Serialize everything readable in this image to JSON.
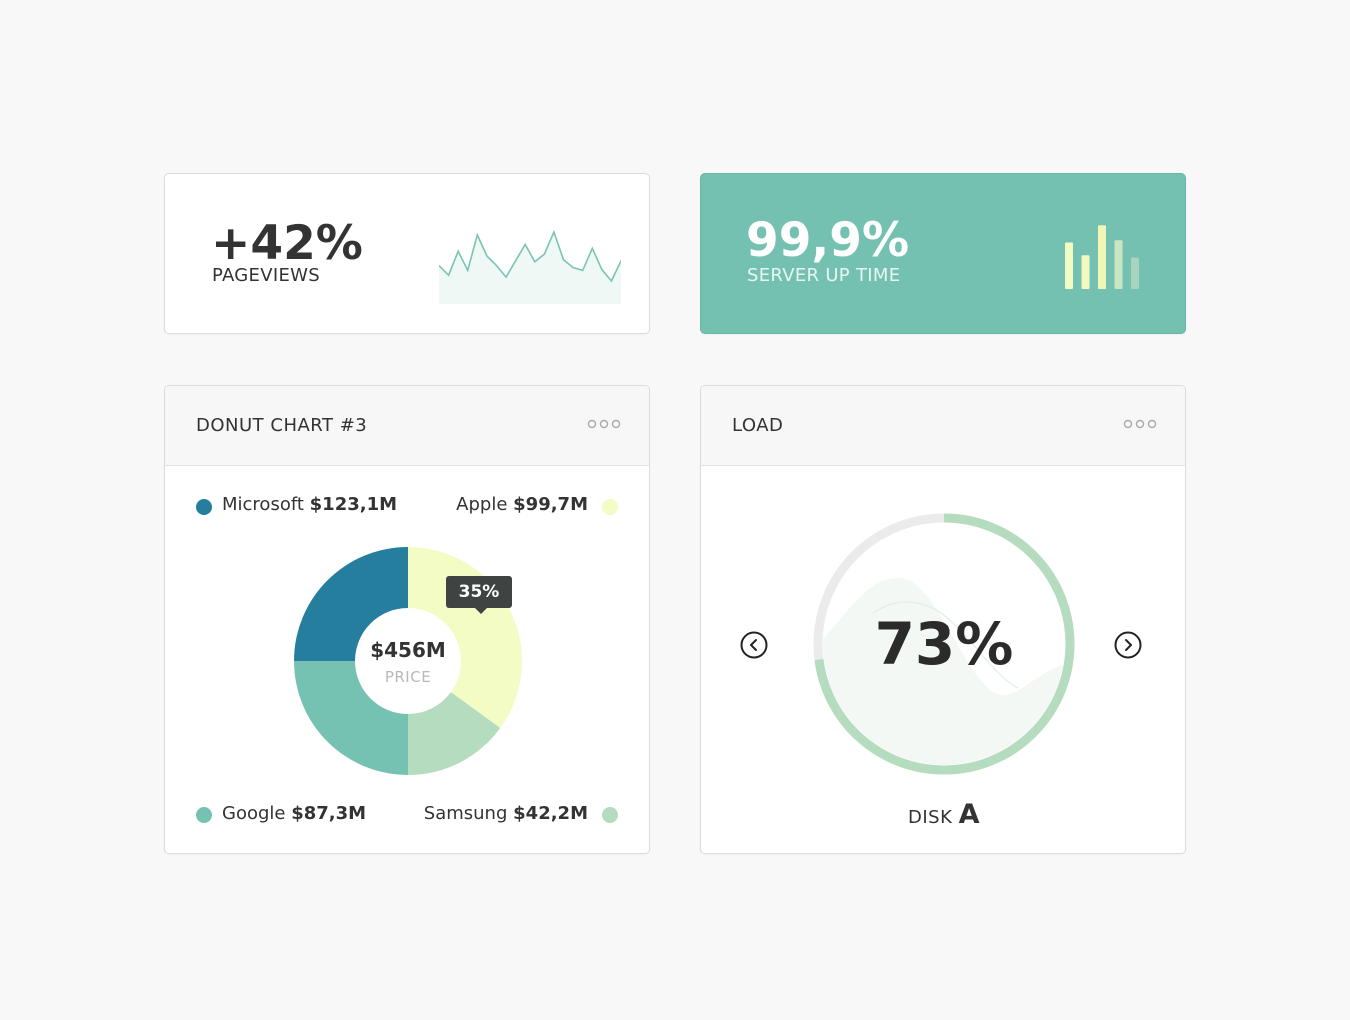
{
  "pageviews": {
    "value": "+42%",
    "label": "PAGEVIEWS",
    "sparkline": [
      40,
      30,
      55,
      35,
      72,
      50,
      40,
      28,
      45,
      62,
      44,
      52,
      75,
      46,
      38,
      35,
      58,
      36,
      24,
      45
    ]
  },
  "uptime": {
    "value": "99,9%",
    "label": "SERVER UP TIME",
    "bars": [
      62,
      45,
      85,
      65,
      42
    ],
    "bar_colors": [
      "#f4fcc6",
      "#f2f9bf",
      "#f0f7b6",
      "#c9e6c3",
      "#a8d3bd"
    ]
  },
  "donut_card": {
    "title": "DONUT CHART #3",
    "more_icon": "more-dots-icon",
    "total": "$456M",
    "total_label": "PRICE",
    "tooltip": "35%",
    "legend": [
      {
        "name": "Microsoft",
        "amount": "$123,1M",
        "color": "#267e9e"
      },
      {
        "name": "Apple",
        "amount": "$99,7M",
        "color": "#f3fcc5"
      },
      {
        "name": "Google",
        "amount": "$87,3M",
        "color": "#76c2b2"
      },
      {
        "name": "Samsung",
        "amount": "$42,2M",
        "color": "#b5dcbe"
      }
    ]
  },
  "load_card": {
    "title": "LOAD",
    "more_icon": "more-dots-icon",
    "value": "73%",
    "percent": 73,
    "disk_prefix": "DISK",
    "disk_letter": "A",
    "prev_icon": "chevron-left-circle-icon",
    "next_icon": "chevron-right-circle-icon",
    "ring_color": "#b5dcbe",
    "track_color": "#ebebeb"
  },
  "chart_data": {
    "type": "pie",
    "categories": [
      "Microsoft",
      "Apple",
      "Google",
      "Samsung"
    ],
    "values": [
      25,
      35,
      25,
      15
    ],
    "colors": [
      "#267e9e",
      "#f3fcc5",
      "#76c2b2",
      "#b5dcbe"
    ]
  }
}
